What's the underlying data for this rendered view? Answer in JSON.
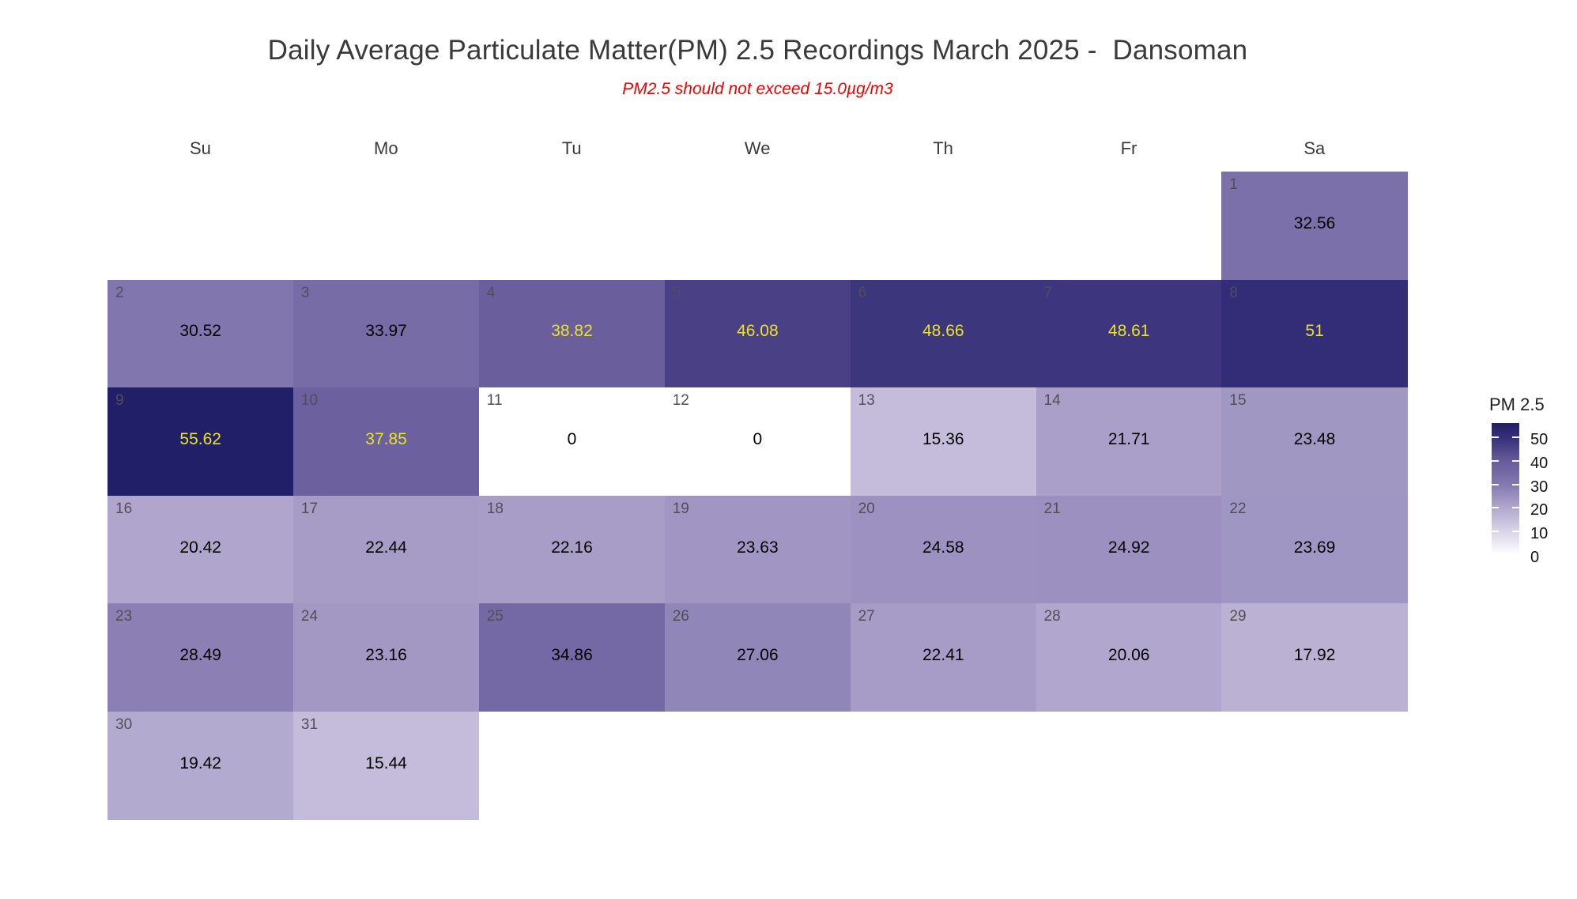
{
  "title": "Daily Average Particulate Matter(PM) 2.5 Recordings March 2025 -  Dansoman",
  "subtitle": "PM2.5 should not exceed 15.0µg/m3",
  "weekdays": [
    "Su",
    "Mo",
    "Tu",
    "We",
    "Th",
    "Fr",
    "Sa"
  ],
  "legend": {
    "title": "PM 2.5",
    "ticks": [
      50,
      40,
      30,
      20,
      10,
      0
    ],
    "min": 0,
    "max": 56,
    "position": "right"
  },
  "chart_data": {
    "type": "heatmap",
    "subtype": "calendar",
    "month": "March 2025",
    "location": "Dansoman",
    "title": "Daily Average Particulate Matter(PM) 2.5 Recordings March 2025 -  Dansoman",
    "annotation": "PM2.5 should not exceed 15.0µg/m3",
    "categories": [
      "Su",
      "Mo",
      "Tu",
      "We",
      "Th",
      "Fr",
      "Sa"
    ],
    "first_day_column": 6,
    "days": [
      {
        "day": 1,
        "value": 32.56,
        "label": "32.56"
      },
      {
        "day": 2,
        "value": 30.52,
        "label": "30.52"
      },
      {
        "day": 3,
        "value": 33.97,
        "label": "33.97"
      },
      {
        "day": 4,
        "value": 38.82,
        "label": "38.82"
      },
      {
        "day": 5,
        "value": 46.08,
        "label": "46.08"
      },
      {
        "day": 6,
        "value": 48.66,
        "label": "48.66"
      },
      {
        "day": 7,
        "value": 48.61,
        "label": "48.61"
      },
      {
        "day": 8,
        "value": 51,
        "label": "51"
      },
      {
        "day": 9,
        "value": 55.62,
        "label": "55.62"
      },
      {
        "day": 10,
        "value": 37.85,
        "label": "37.85"
      },
      {
        "day": 11,
        "value": 0,
        "label": "0"
      },
      {
        "day": 12,
        "value": 0,
        "label": "0"
      },
      {
        "day": 13,
        "value": 15.36,
        "label": "15.36"
      },
      {
        "day": 14,
        "value": 21.71,
        "label": "21.71"
      },
      {
        "day": 15,
        "value": 23.48,
        "label": "23.48"
      },
      {
        "day": 16,
        "value": 20.42,
        "label": "20.42"
      },
      {
        "day": 17,
        "value": 22.44,
        "label": "22.44"
      },
      {
        "day": 18,
        "value": 22.16,
        "label": "22.16"
      },
      {
        "day": 19,
        "value": 23.63,
        "label": "23.63"
      },
      {
        "day": 20,
        "value": 24.58,
        "label": "24.58"
      },
      {
        "day": 21,
        "value": 24.92,
        "label": "24.92"
      },
      {
        "day": 22,
        "value": 23.69,
        "label": "23.69"
      },
      {
        "day": 23,
        "value": 28.49,
        "label": "28.49"
      },
      {
        "day": 24,
        "value": 23.16,
        "label": "23.16"
      },
      {
        "day": 25,
        "value": 34.86,
        "label": "34.86"
      },
      {
        "day": 26,
        "value": 27.06,
        "label": "27.06"
      },
      {
        "day": 27,
        "value": 22.41,
        "label": "22.41"
      },
      {
        "day": 28,
        "value": 20.06,
        "label": "20.06"
      },
      {
        "day": 29,
        "value": 17.92,
        "label": "17.92"
      },
      {
        "day": 30,
        "value": 19.42,
        "label": "19.42"
      },
      {
        "day": 31,
        "value": 15.44,
        "label": "15.44"
      }
    ],
    "colorscale": [
      [
        0,
        "#ffffff"
      ],
      [
        10,
        "#dad5e8"
      ],
      [
        20,
        "#b1a7ce"
      ],
      [
        30,
        "#8478af"
      ],
      [
        40,
        "#665a9a"
      ],
      [
        50,
        "#363079"
      ],
      [
        56,
        "#201e66"
      ]
    ],
    "value_label_colors": {
      "high": "#e9e326",
      "low": "#000000",
      "threshold": 36
    },
    "day_number_color": "#514e57",
    "grid": false,
    "legend_position": "right"
  }
}
